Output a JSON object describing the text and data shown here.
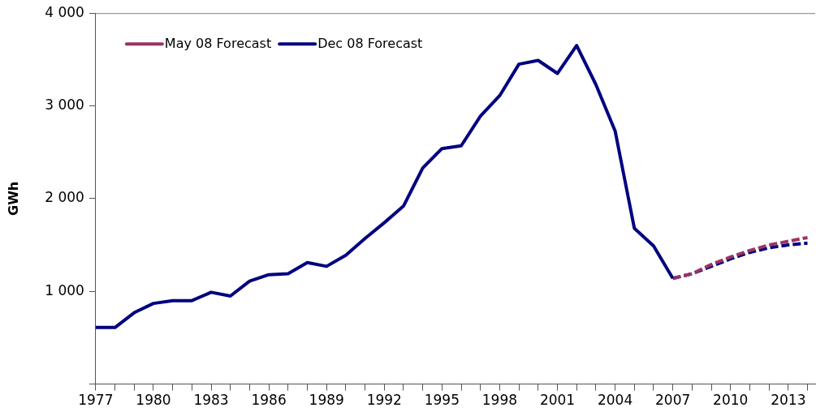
{
  "chart_data": {
    "type": "line",
    "ylabel": "GWh",
    "xlim": [
      1977,
      2014.4
    ],
    "ylim": [
      0,
      4000
    ],
    "xticks": [
      1977,
      {
        "value": 1978,
        "label": null
      },
      {
        "value": 1979,
        "label": null
      },
      1980,
      {
        "value": 1981,
        "label": null
      },
      {
        "value": 1982,
        "label": null
      },
      1983,
      {
        "value": 1984,
        "label": null
      },
      {
        "value": 1985,
        "label": null
      },
      1986,
      {
        "value": 1987,
        "label": null
      },
      {
        "value": 1988,
        "label": null
      },
      1989,
      {
        "value": 1990,
        "label": null
      },
      {
        "value": 1991,
        "label": null
      },
      1992,
      {
        "value": 1993,
        "label": null
      },
      {
        "value": 1994,
        "label": null
      },
      1995,
      {
        "value": 1996,
        "label": null
      },
      {
        "value": 1997,
        "label": null
      },
      1998,
      {
        "value": 1999,
        "label": null
      },
      {
        "value": 2000,
        "label": null
      },
      2001,
      {
        "value": 2002,
        "label": null
      },
      {
        "value": 2003,
        "label": null
      },
      2004,
      {
        "value": 2005,
        "label": null
      },
      {
        "value": 2006,
        "label": null
      },
      2007,
      {
        "value": 2008,
        "label": null
      },
      {
        "value": 2009,
        "label": null
      },
      2010,
      {
        "value": 2011,
        "label": null
      },
      {
        "value": 2012,
        "label": null
      },
      2013,
      {
        "value": 2014,
        "label": null
      }
    ],
    "yticks": [
      {
        "value": 0,
        "label": null
      },
      {
        "value": 1000,
        "label": "1 000"
      },
      {
        "value": 2000,
        "label": "2 000"
      },
      {
        "value": 3000,
        "label": "3 000"
      },
      {
        "value": 4000,
        "label": "4 000"
      }
    ],
    "grid": false,
    "legend": "top left",
    "marker": "none",
    "series": [
      {
        "color": "#000080",
        "line_style": "solid",
        "x": [
          1977,
          1978,
          1979,
          1980,
          1981,
          1982,
          1983,
          1984,
          1985,
          1986,
          1987,
          1988,
          1989,
          1990,
          1991,
          1992,
          1993,
          1994,
          1995,
          1996,
          1997,
          1998,
          1999,
          2000,
          2001,
          2002,
          2003,
          2004,
          2005,
          2006,
          2007
        ],
        "values": [
          610,
          610,
          770,
          870,
          900,
          900,
          990,
          950,
          1110,
          1180,
          1190,
          1310,
          1270,
          1390,
          1570,
          1740,
          1920,
          2330,
          2540,
          2570,
          2890,
          3110,
          3450,
          3490,
          3350,
          3650,
          3230,
          2730,
          1680,
          1490,
          1140
        ]
      },
      {
        "name": "May 08 Forecast",
        "color": "#993366",
        "line_style": "dashed",
        "x": [
          2007,
          2008,
          2009,
          2010,
          2011,
          2012,
          2013,
          2014
        ],
        "values": [
          1140,
          1190,
          1290,
          1370,
          1440,
          1500,
          1540,
          1580
        ]
      },
      {
        "name": "Dec 08 Forecast",
        "color": "#000080",
        "line_style": "dashed",
        "x": [
          2007,
          2008,
          2009,
          2010,
          2011,
          2012,
          2013,
          2014
        ],
        "values": [
          1140,
          1190,
          1270,
          1350,
          1420,
          1470,
          1500,
          1520
        ]
      }
    ]
  }
}
